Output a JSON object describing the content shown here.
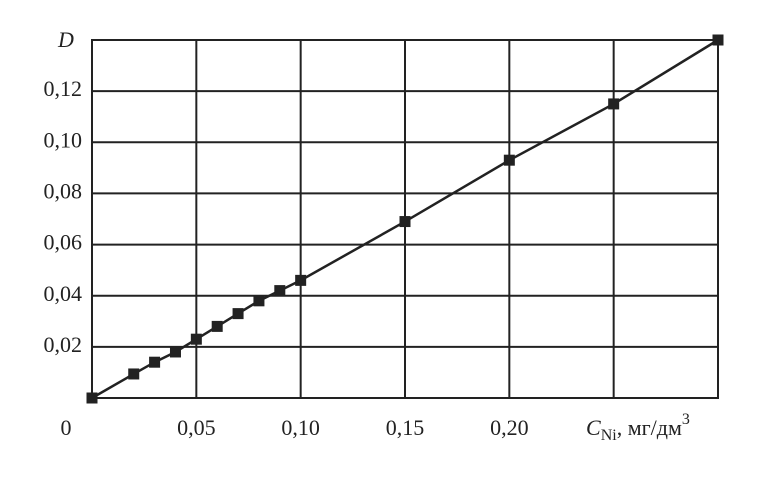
{
  "chart_data": {
    "type": "line",
    "y_label": "D",
    "x_label": "C",
    "x_label_sub": "Ni",
    "x_label_unit": ", мг/дм",
    "x_label_sup": "3",
    "x": [
      0,
      0.02,
      0.03,
      0.04,
      0.05,
      0.06,
      0.07,
      0.08,
      0.09,
      0.1,
      0.15,
      0.2,
      0.25,
      0.3
    ],
    "series": [
      {
        "color": "#222222",
        "values": [
          0,
          0.0094,
          0.014,
          0.018,
          0.023,
          0.028,
          0.033,
          0.038,
          0.042,
          0.046,
          0.069,
          0.093,
          0.115,
          0.14
        ]
      }
    ],
    "xlim": [
      0,
      0.3
    ],
    "ylim": [
      0,
      0.14
    ],
    "xticks": [
      {
        "value": 0,
        "label": "0"
      },
      {
        "value": 0.05,
        "label": "0,05"
      },
      {
        "value": 0.1,
        "label": "0,10"
      },
      {
        "value": 0.15,
        "label": "0,15"
      },
      {
        "value": 0.2,
        "label": "0,20"
      },
      {
        "value": 0.25,
        "label": null
      }
    ],
    "yticks": [
      {
        "value": 0.02,
        "label": "0,02"
      },
      {
        "value": 0.04,
        "label": "0,04"
      },
      {
        "value": 0.06,
        "label": "0,06"
      },
      {
        "value": 0.08,
        "label": "0,08"
      },
      {
        "value": 0.1,
        "label": "0,10"
      },
      {
        "value": 0.12,
        "label": "0,12"
      }
    ],
    "grid": true
  }
}
